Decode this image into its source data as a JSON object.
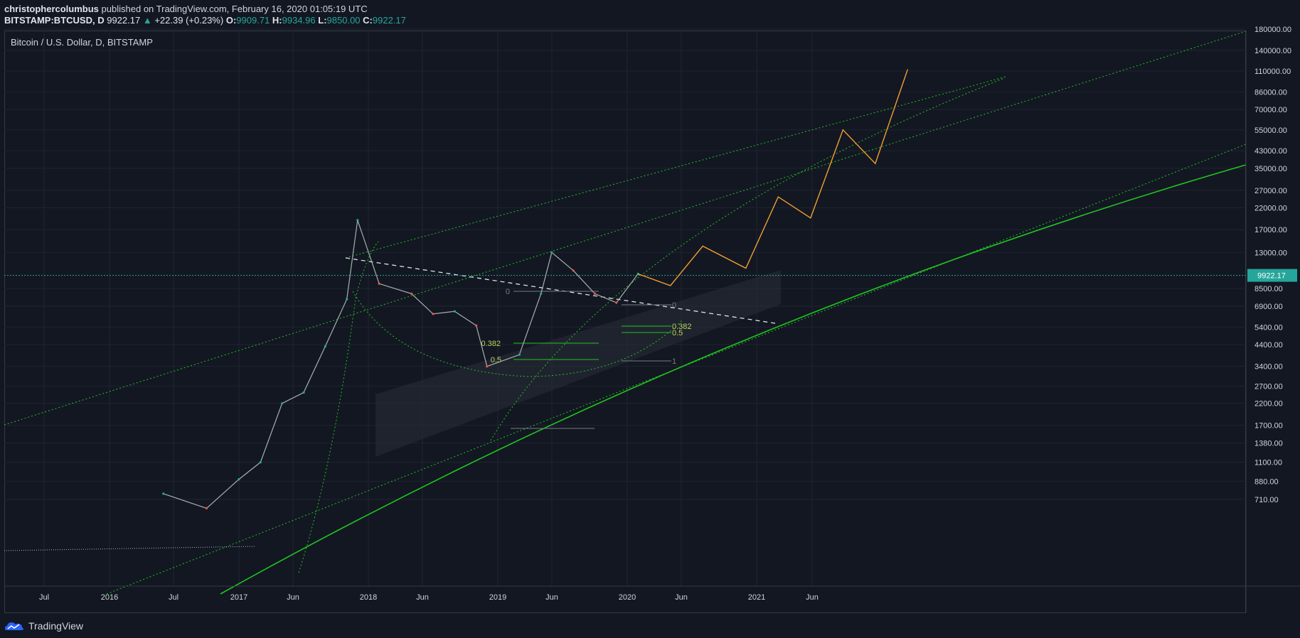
{
  "header": {
    "author": "christophercolumbus",
    "published": "published on TradingView.com, February 16, 2020 01:05:19 UTC",
    "symbol": "BITSTAMP:BTCUSD, D",
    "last": "9922.17",
    "change": "+22.39 (+0.23%)",
    "o_label": "O:",
    "o": "9909.71",
    "h_label": "H:",
    "h": "9934.96",
    "l_label": "L:",
    "l": "9850.00",
    "c_label": "C:",
    "c": "9922.17"
  },
  "chart_title": "Bitcoin / U.S. Dollar, D, BITSTAMP",
  "footer": {
    "brand": "TradingView"
  },
  "colors": {
    "background": "#131722",
    "up": "#26a69a",
    "down": "#ef5350",
    "projection": "#f0a030",
    "trend": "#21c321",
    "price_line": "#26a69a"
  },
  "chart_data": {
    "type": "line",
    "title": "Bitcoin / U.S. Dollar, D, BITSTAMP",
    "xlabel": "",
    "ylabel": "",
    "scale": "log",
    "ylim": [
      620,
      185000
    ],
    "x_ticks": [
      "Jul",
      "2016",
      "Jul",
      "2017",
      "Jun",
      "2018",
      "Jun",
      "2019",
      "Jun",
      "2020",
      "Jun",
      "2021",
      "Jun"
    ],
    "y_ticks": [
      "180000.00",
      "140000.00",
      "110000.00",
      "86000.00",
      "70000.00",
      "55000.00",
      "43000.00",
      "35000.00",
      "27000.00",
      "22000.00",
      "17000.00",
      "13000.00",
      "8500.00",
      "6900.00",
      "5400.00",
      "4400.00",
      "3400.00",
      "2700.00",
      "2200.00",
      "1700.00",
      "1380.00",
      "1100.00",
      "880.00",
      "710.00"
    ],
    "last_price": "9922.17",
    "fib_levels_1": [
      "0",
      "0.382",
      "0.5"
    ],
    "fib_levels_2": [
      "0",
      "0.382",
      "0.5",
      "1"
    ],
    "series": [
      {
        "name": "",
        "x": [
          "2016-06",
          "2016-10",
          "2017-01",
          "2017-03",
          "2017-05",
          "2017-07",
          "2017-09",
          "2017-11",
          "2017-12",
          "2018-02",
          "2018-05",
          "2018-07",
          "2018-09",
          "2018-11",
          "2018-12",
          "2019-03",
          "2019-05",
          "2019-06",
          "2019-08",
          "2019-10",
          "2019-12",
          "2020-02"
        ],
        "values": [
          760,
          640,
          900,
          1100,
          2200,
          2500,
          4300,
          7500,
          19000,
          9000,
          8000,
          6300,
          6500,
          5500,
          3400,
          3900,
          8000,
          13000,
          10500,
          8000,
          7200,
          10100
        ]
      },
      {
        "name": "",
        "x": [
          "2020-02",
          "2020-05",
          "2020-08",
          "2020-12",
          "2021-03",
          "2021-06",
          "2021-09",
          "2021-12",
          "2022-03"
        ],
        "values": [
          10100,
          8800,
          14000,
          10800,
          25000,
          19500,
          55000,
          37000,
          112000
        ]
      }
    ]
  }
}
